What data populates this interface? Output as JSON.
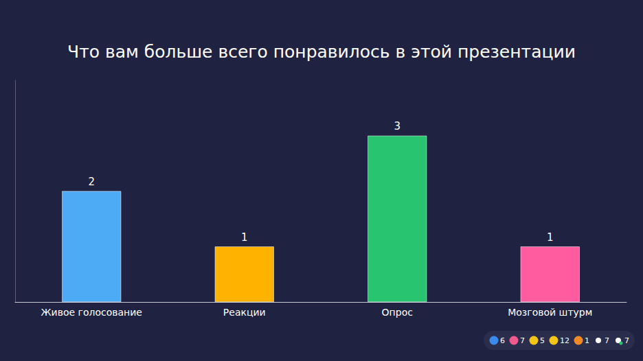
{
  "chart_data": {
    "type": "bar",
    "title": "Что вам больше всего понравилось в этой презентации",
    "categories": [
      "Живое голосование",
      "Реакции",
      "Опрос",
      "Мозговой штурм"
    ],
    "values": [
      2,
      1,
      3,
      1
    ],
    "colors": [
      "#4dabf5",
      "#ffb300",
      "#29c46f",
      "#ff5ca0"
    ],
    "ylim": [
      0,
      4
    ],
    "grid": false,
    "data_labels": true,
    "tick_labels": "x"
  },
  "reactions": [
    6,
    7,
    5,
    12,
    1,
    7,
    7
  ]
}
